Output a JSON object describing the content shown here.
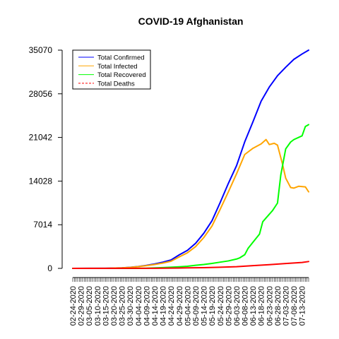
{
  "chart_data": {
    "type": "line",
    "title": "COVID-19 Afghanistan",
    "xlabel": "",
    "ylabel": "",
    "x_start_label": "02-24-2020",
    "x_end_label": "07-17-2020",
    "num_points": 145,
    "ylim": [
      0,
      35070
    ],
    "yticks": [
      0,
      7014,
      14028,
      21042,
      28056,
      35070
    ],
    "xtick_labels": [
      "02-24-2020",
      "02-29-2020",
      "03-05-2020",
      "03-10-2020",
      "03-15-2020",
      "03-20-2020",
      "03-25-2020",
      "03-30-2020",
      "04-04-2020",
      "04-09-2020",
      "04-14-2020",
      "04-19-2020",
      "04-24-2020",
      "04-29-2020",
      "05-04-2020",
      "05-09-2020",
      "05-14-2020",
      "05-19-2020",
      "05-24-2020",
      "05-29-2020",
      "06-03-2020",
      "06-08-2020",
      "06-13-2020",
      "06-18-2020",
      "06-23-2020",
      "06-28-2020",
      "07-03-2020",
      "07-08-2020",
      "07-13-2020"
    ],
    "legend": {
      "position": "top-left"
    },
    "grid": false,
    "series": [
      {
        "name": "Total Confirmed",
        "color": "#0000ff",
        "line_style": "solid",
        "points": [
          [
            "02-24-2020",
            1
          ],
          [
            "03-15-2020",
            16
          ],
          [
            "03-25-2020",
            84
          ],
          [
            "03-30-2020",
            170
          ],
          [
            "04-04-2020",
            299
          ],
          [
            "04-09-2020",
            484
          ],
          [
            "04-14-2020",
            714
          ],
          [
            "04-19-2020",
            996
          ],
          [
            "04-24-2020",
            1351
          ],
          [
            "04-29-2020",
            2171
          ],
          [
            "05-04-2020",
            2894
          ],
          [
            "05-09-2020",
            4033
          ],
          [
            "05-14-2020",
            5639
          ],
          [
            "05-19-2020",
            7653
          ],
          [
            "05-24-2020",
            10582
          ],
          [
            "05-29-2020",
            13659
          ],
          [
            "06-03-2020",
            16509
          ],
          [
            "06-08-2020",
            20342
          ],
          [
            "06-13-2020",
            23546
          ],
          [
            "06-18-2020",
            26874
          ],
          [
            "06-23-2020",
            29143
          ],
          [
            "06-28-2020",
            30967
          ],
          [
            "07-03-2020",
            32324
          ],
          [
            "07-08-2020",
            33594
          ],
          [
            "07-13-2020",
            34451
          ],
          [
            "07-17-2020",
            35070
          ]
        ]
      },
      {
        "name": "Total Infected",
        "color": "#ffa500",
        "line_style": "solid",
        "points": [
          [
            "02-24-2020",
            1
          ],
          [
            "03-15-2020",
            16
          ],
          [
            "03-25-2020",
            80
          ],
          [
            "03-30-2020",
            160
          ],
          [
            "04-04-2020",
            280
          ],
          [
            "04-09-2020",
            440
          ],
          [
            "04-14-2020",
            620
          ],
          [
            "04-19-2020",
            850
          ],
          [
            "04-24-2020",
            1150
          ],
          [
            "04-29-2020",
            1850
          ],
          [
            "05-04-2020",
            2500
          ],
          [
            "05-09-2020",
            3500
          ],
          [
            "05-14-2020",
            4950
          ],
          [
            "05-19-2020",
            6800
          ],
          [
            "05-24-2020",
            9500
          ],
          [
            "05-29-2020",
            12300
          ],
          [
            "06-03-2020",
            15200
          ],
          [
            "06-08-2020",
            18300
          ],
          [
            "06-13-2020",
            19300
          ],
          [
            "06-18-2020",
            20000
          ],
          [
            "06-21-2020",
            20700
          ],
          [
            "06-23-2020",
            19900
          ],
          [
            "06-26-2020",
            20100
          ],
          [
            "06-28-2020",
            19800
          ],
          [
            "07-01-2020",
            16800
          ],
          [
            "07-03-2020",
            14500
          ],
          [
            "07-06-2020",
            13000
          ],
          [
            "07-08-2020",
            12900
          ],
          [
            "07-11-2020",
            13200
          ],
          [
            "07-15-2020",
            13100
          ],
          [
            "07-17-2020",
            12300
          ]
        ]
      },
      {
        "name": "Total Recovered",
        "color": "#00ff00",
        "line_style": "solid",
        "points": [
          [
            "02-24-2020",
            0
          ],
          [
            "03-30-2020",
            5
          ],
          [
            "04-09-2020",
            32
          ],
          [
            "04-19-2020",
            131
          ],
          [
            "04-29-2020",
            260
          ],
          [
            "05-04-2020",
            345
          ],
          [
            "05-09-2020",
            502
          ],
          [
            "05-14-2020",
            630
          ],
          [
            "05-19-2020",
            800
          ],
          [
            "05-24-2020",
            1000
          ],
          [
            "05-29-2020",
            1200
          ],
          [
            "06-03-2020",
            1500
          ],
          [
            "06-05-2020",
            1700
          ],
          [
            "06-08-2020",
            2200
          ],
          [
            "06-10-2020",
            3200
          ],
          [
            "06-13-2020",
            4200
          ],
          [
            "06-17-2020",
            5500
          ],
          [
            "06-19-2020",
            7500
          ],
          [
            "06-23-2020",
            8700
          ],
          [
            "06-25-2020",
            9300
          ],
          [
            "06-28-2020",
            10500
          ],
          [
            "06-30-2020",
            15000
          ],
          [
            "07-03-2020",
            19200
          ],
          [
            "07-06-2020",
            20300
          ],
          [
            "07-08-2020",
            20700
          ],
          [
            "07-13-2020",
            21300
          ],
          [
            "07-15-2020",
            22800
          ],
          [
            "07-17-2020",
            23100
          ]
        ]
      },
      {
        "name": "Total Deaths",
        "color": "#ff0000",
        "line_style": "dashed",
        "points": [
          [
            "02-24-2020",
            0
          ],
          [
            "04-04-2020",
            10
          ],
          [
            "04-14-2020",
            20
          ],
          [
            "04-24-2020",
            40
          ],
          [
            "05-04-2020",
            80
          ],
          [
            "05-14-2020",
            120
          ],
          [
            "05-24-2020",
            190
          ],
          [
            "06-03-2020",
            270
          ],
          [
            "06-13-2020",
            440
          ],
          [
            "06-23-2020",
            600
          ],
          [
            "07-03-2020",
            780
          ],
          [
            "07-13-2020",
            950
          ],
          [
            "07-17-2020",
            1100
          ]
        ]
      }
    ]
  }
}
